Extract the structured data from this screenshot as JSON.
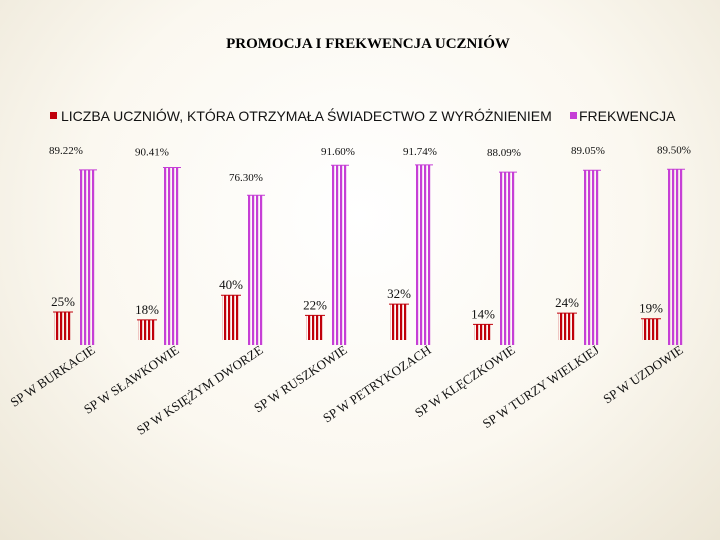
{
  "chart_data": {
    "type": "bar",
    "title": "PROMOCJA I FREKWENCJA UCZNIÓW",
    "categories": [
      "SP W BURKACIE",
      "SP W SŁAWKOWIE",
      "SP W KSIĘŻYM DWORZE",
      "SP W RUSZKOWIE",
      "SP W PETRYKOZACH",
      "SP W KLĘCZKOWIE",
      "SP W TURZY WIELKIEJ",
      "SP W UZDOWIE"
    ],
    "series": [
      {
        "name": "LICZBA UCZNIÓW, KTÓRA OTRZYMAŁA ŚWIADECTWO Z WYRÓŻNIENIEM",
        "color": "#c0000b",
        "values": [
          25,
          18,
          40,
          22,
          32,
          14,
          24,
          19
        ],
        "labels": [
          "25%",
          "18%",
          "40%",
          "22%",
          "32%",
          "14%",
          "24%",
          "19%"
        ]
      },
      {
        "name": "FREKWENCJA",
        "color": "#c63fd6",
        "values": [
          89.22,
          90.41,
          76.3,
          91.6,
          91.74,
          88.09,
          89.05,
          89.5
        ],
        "labels": [
          "89.22%",
          "90.41%",
          "76.30%",
          "91.60%",
          "91.74%",
          "88.09%",
          "89.05%",
          "89.50%"
        ]
      }
    ],
    "legend_position": "top",
    "grid": false
  }
}
